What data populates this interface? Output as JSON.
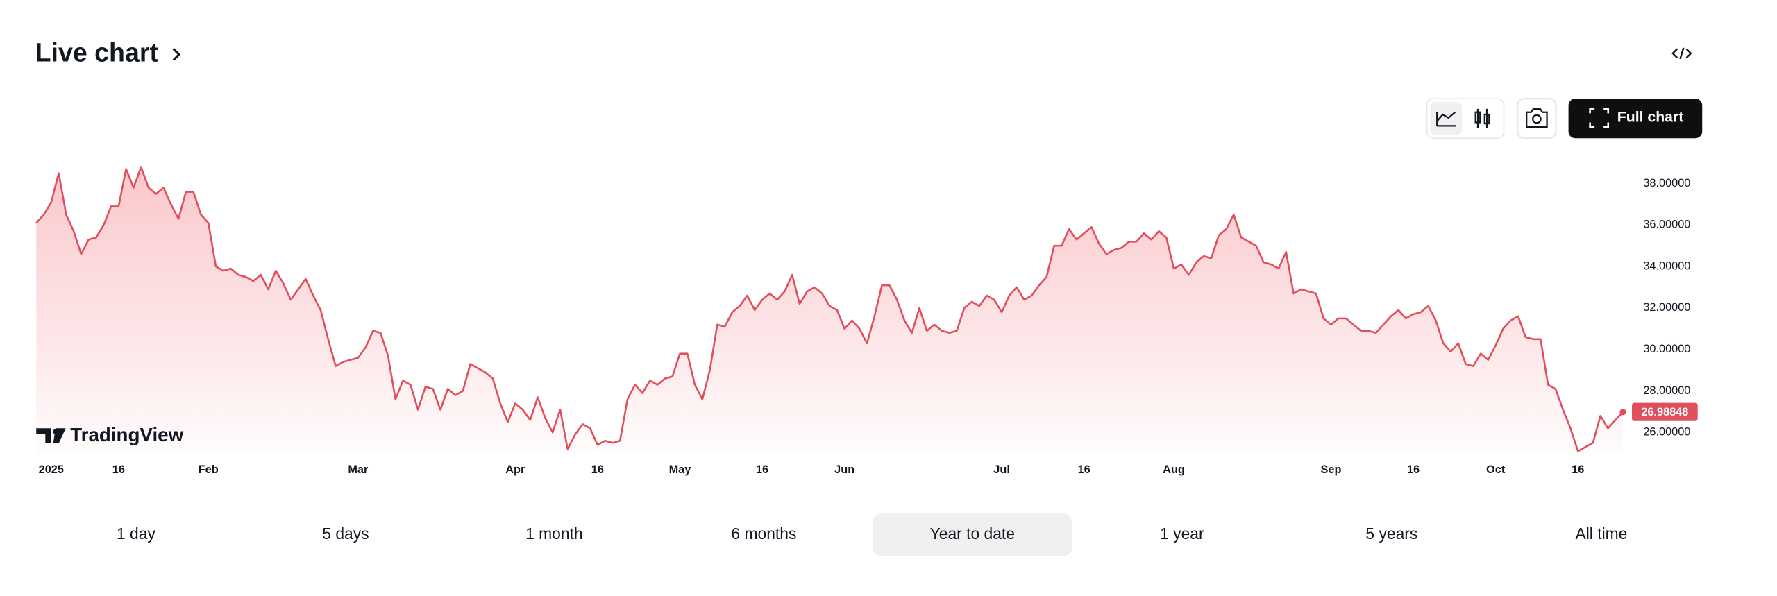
{
  "header": {
    "title": "Live chart",
    "full_chart": "Full chart",
    "watermark": "TradingView"
  },
  "range_buttons": [
    "1 day",
    "5 days",
    "1 month",
    "6 months",
    "Year to date",
    "1 year",
    "5 years",
    "All time"
  ],
  "selected_range": 4,
  "chart_data": {
    "type": "area",
    "color": "#e0505c",
    "categories": [
      null,
      null,
      "2025",
      null,
      null,
      null,
      null,
      null,
      null,
      null,
      null,
      "16",
      null,
      null,
      null,
      null,
      null,
      null,
      null,
      null,
      null,
      null,
      null,
      "Feb",
      null,
      null,
      null,
      null,
      null,
      null,
      null,
      null,
      null,
      null,
      null,
      null,
      null,
      null,
      null,
      null,
      null,
      null,
      null,
      "Mar",
      null,
      null,
      null,
      null,
      null,
      null,
      null,
      null,
      null,
      null,
      null,
      null,
      null,
      null,
      null,
      null,
      null,
      null,
      null,
      null,
      "Apr",
      null,
      null,
      null,
      null,
      null,
      null,
      null,
      null,
      null,
      null,
      "16",
      null,
      null,
      null,
      null,
      null,
      null,
      null,
      null,
      null,
      null,
      "May",
      null,
      null,
      null,
      null,
      null,
      null,
      null,
      null,
      null,
      null,
      "16",
      null,
      null,
      null,
      null,
      null,
      null,
      null,
      null,
      null,
      null,
      "Jun",
      null,
      null,
      null,
      null,
      null,
      null,
      null,
      null,
      null,
      null,
      null,
      null,
      null,
      null,
      null,
      null,
      null,
      null,
      null,
      null,
      "Jul",
      null,
      null,
      null,
      null,
      null,
      null,
      null,
      null,
      null,
      null,
      "16",
      null,
      null,
      null,
      null,
      null,
      null,
      null,
      null,
      null,
      null,
      null,
      "Aug",
      null,
      null,
      null,
      null,
      null,
      null,
      null,
      null,
      null,
      null,
      null,
      null,
      null,
      null,
      null,
      null,
      null,
      null,
      null,
      null,
      "Sep",
      null,
      null,
      null,
      null,
      null,
      null,
      null,
      null,
      null,
      null,
      "16",
      null,
      null,
      null,
      null,
      null,
      null,
      null,
      null,
      null,
      null,
      "Oct",
      null,
      null,
      null,
      null,
      null,
      null,
      null,
      null,
      null,
      null,
      "16",
      null,
      null,
      null,
      null,
      null,
      null
    ],
    "values": [
      36.1,
      36.5,
      37.1,
      38.5,
      36.5,
      35.7,
      34.6,
      35.3,
      35.4,
      36.0,
      36.9,
      36.9,
      38.7,
      37.8,
      38.8,
      37.8,
      37.5,
      37.8,
      37.0,
      36.3,
      37.6,
      37.6,
      36.5,
      36.1,
      34.0,
      33.8,
      33.9,
      33.6,
      33.5,
      33.3,
      33.6,
      32.9,
      33.8,
      33.2,
      32.4,
      32.9,
      33.4,
      32.6,
      31.9,
      30.5,
      29.2,
      29.4,
      29.5,
      29.6,
      30.1,
      30.9,
      30.8,
      29.7,
      27.6,
      28.5,
      28.3,
      27.1,
      28.2,
      28.1,
      27.1,
      28.1,
      27.8,
      28.0,
      29.3,
      29.1,
      28.9,
      28.6,
      27.4,
      26.5,
      27.4,
      27.1,
      26.6,
      27.7,
      26.7,
      26.0,
      27.1,
      25.2,
      25.9,
      26.4,
      26.2,
      25.4,
      25.6,
      25.5,
      25.6,
      27.6,
      28.3,
      27.9,
      28.5,
      28.3,
      28.6,
      28.7,
      29.8,
      29.8,
      28.3,
      27.6,
      29.0,
      31.2,
      31.1,
      31.8,
      32.1,
      32.6,
      31.9,
      32.4,
      32.7,
      32.4,
      32.8,
      33.6,
      32.2,
      32.8,
      33.0,
      32.7,
      32.1,
      31.9,
      31.0,
      31.4,
      31.0,
      30.3,
      31.6,
      33.1,
      33.1,
      32.4,
      31.4,
      30.8,
      32.0,
      30.9,
      31.2,
      30.9,
      30.8,
      30.9,
      32.0,
      32.3,
      32.1,
      32.6,
      32.4,
      31.8,
      32.6,
      33.0,
      32.4,
      32.6,
      33.1,
      33.5,
      35.0,
      35.0,
      35.8,
      35.3,
      35.6,
      35.9,
      35.1,
      34.6,
      34.8,
      34.9,
      35.2,
      35.2,
      35.6,
      35.3,
      35.7,
      35.4,
      33.9,
      34.1,
      33.6,
      34.2,
      34.5,
      34.4,
      35.5,
      35.8,
      36.5,
      35.4,
      35.2,
      35.0,
      34.2,
      34.1,
      33.9,
      34.7,
      32.7,
      32.9,
      32.8,
      32.7,
      31.5,
      31.2,
      31.5,
      31.5,
      31.2,
      30.9,
      30.9,
      30.8,
      31.2,
      31.6,
      31.9,
      31.5,
      31.7,
      31.8,
      32.1,
      31.4,
      30.3,
      29.9,
      30.3,
      29.3,
      29.2,
      29.8,
      29.5,
      30.2,
      31.0,
      31.4,
      31.6,
      30.6,
      30.5,
      30.5,
      28.3,
      28.1,
      27.1,
      26.2,
      25.1,
      25.3,
      25.5,
      26.8,
      26.2,
      26.6,
      26.98848
    ],
    "ylim": [
      25,
      39.2
    ],
    "yticks": [
      {
        "value": 26,
        "label": "26.00000"
      },
      {
        "value": 28,
        "label": "28.00000"
      },
      {
        "value": 30,
        "label": "30.00000"
      },
      {
        "value": 32,
        "label": "32.00000"
      },
      {
        "value": 34,
        "label": "34.00000"
      },
      {
        "value": 36,
        "label": "36.00000"
      },
      {
        "value": 38,
        "label": "38.00000"
      }
    ]
  }
}
